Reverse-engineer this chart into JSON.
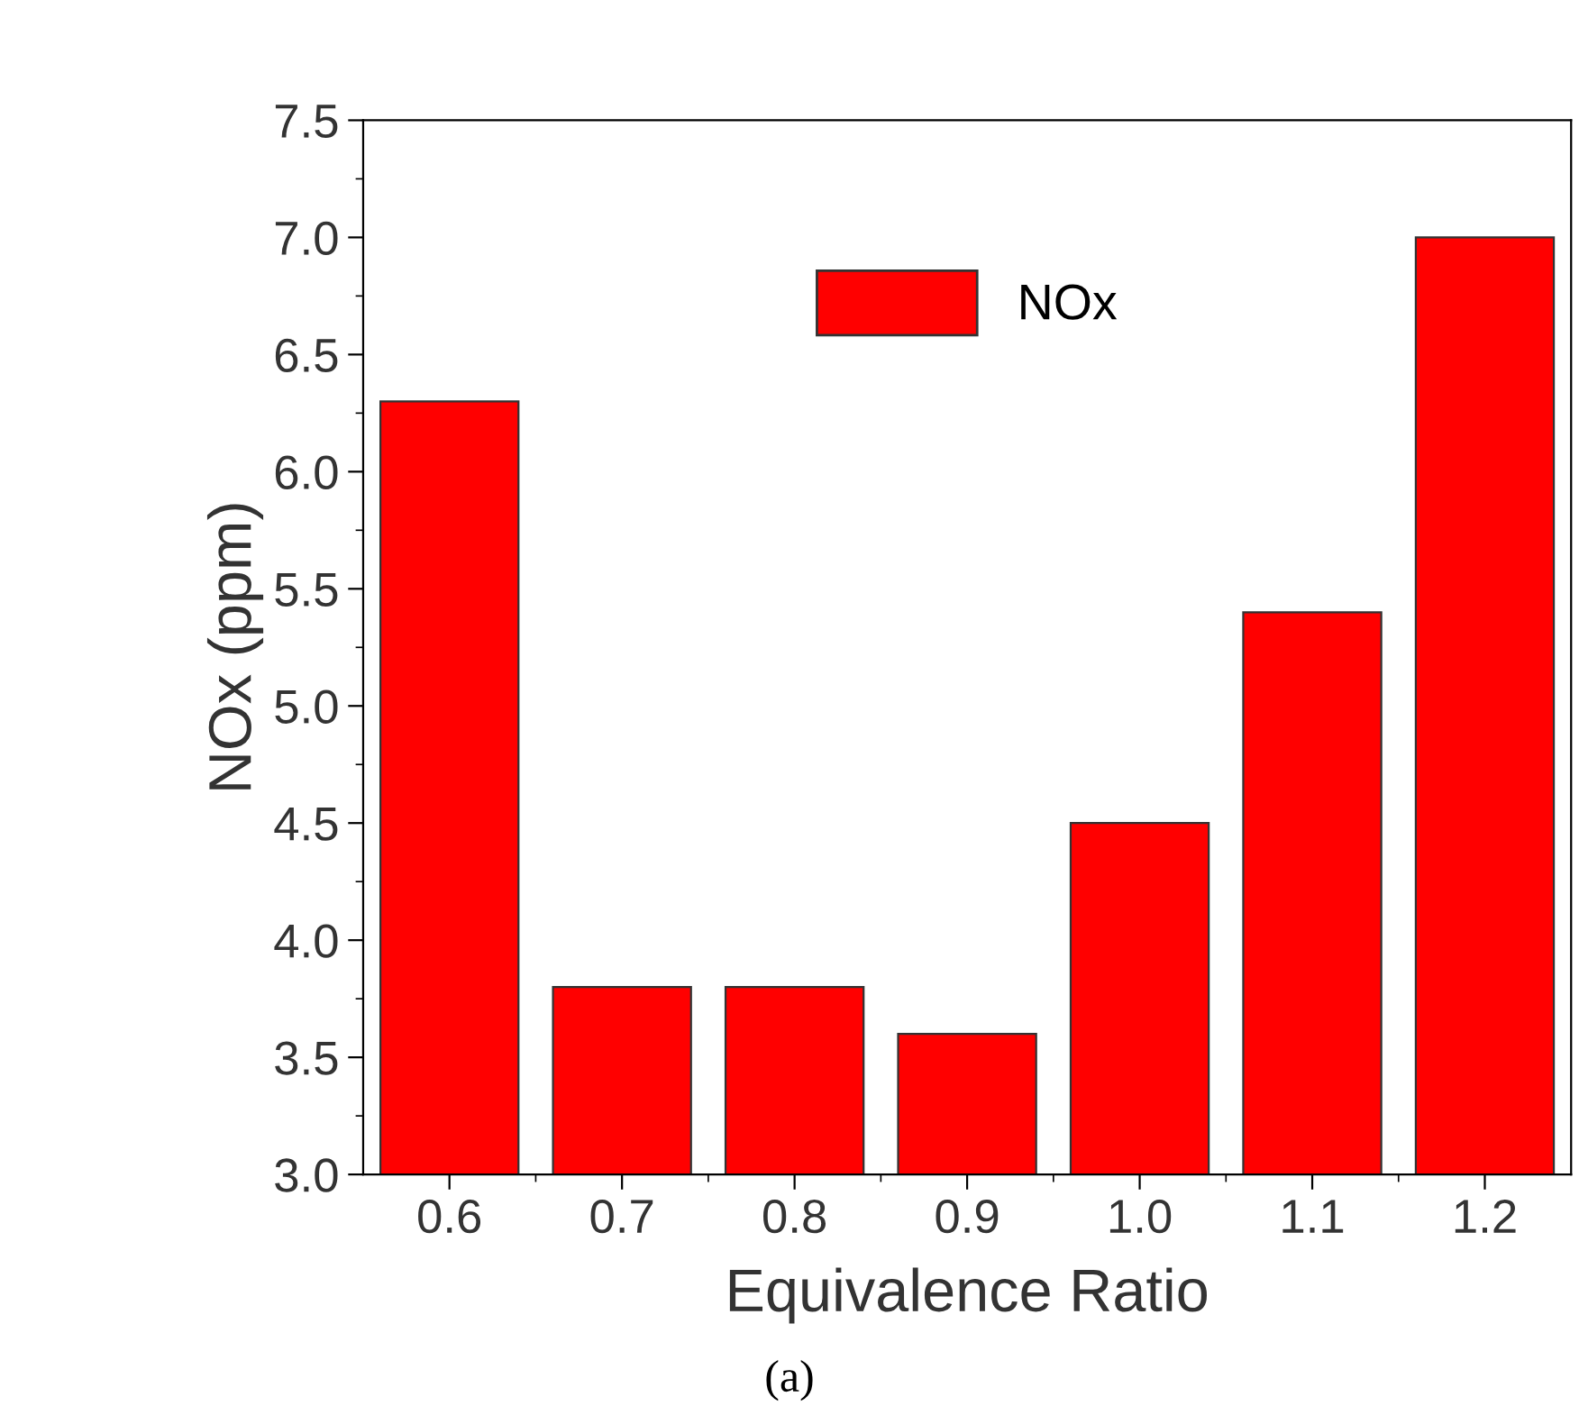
{
  "chart_data": {
    "type": "bar",
    "xlabel": "Equivalence Ratio",
    "ylabel": "NOx (ppm)",
    "categories": [
      "0.6",
      "0.7",
      "0.8",
      "0.9",
      "1.0",
      "1.1",
      "1.2"
    ],
    "series": [
      {
        "name": "NOx",
        "color": "#ff0000",
        "values": [
          6.3,
          3.8,
          3.8,
          3.6,
          4.5,
          5.4,
          7.0
        ]
      }
    ],
    "ylim": [
      3.0,
      7.5
    ],
    "yticks": [
      {
        "value": 3.0,
        "label": "3.0"
      },
      {
        "value": 3.5,
        "label": "3.5"
      },
      {
        "value": 4.0,
        "label": "4.0"
      },
      {
        "value": 4.5,
        "label": "4.5"
      },
      {
        "value": 5.0,
        "label": "5.0"
      },
      {
        "value": 5.5,
        "label": "5.5"
      },
      {
        "value": 6.0,
        "label": "6.0"
      },
      {
        "value": 6.5,
        "label": "6.5"
      },
      {
        "value": 7.0,
        "label": "7.0"
      },
      {
        "value": 7.5,
        "label": "7.5"
      }
    ],
    "legend": "top",
    "grid": false,
    "annotations": [
      "(a)"
    ]
  }
}
